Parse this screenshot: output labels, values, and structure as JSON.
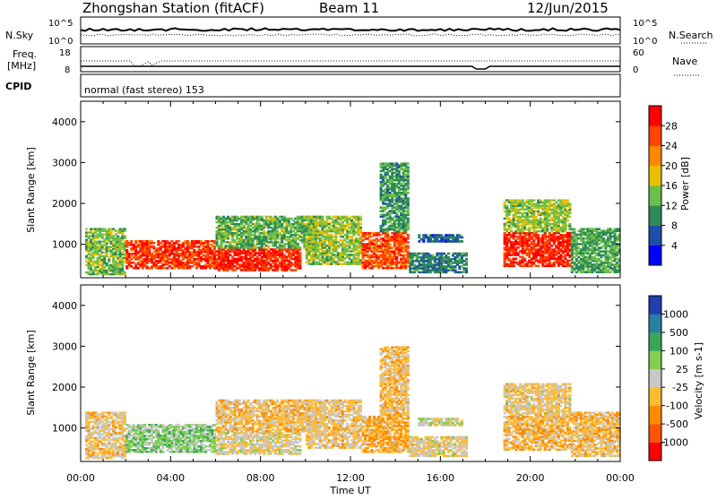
{
  "header": {
    "station": "Zhongshan Station (fitACF)",
    "beam": "Beam 11",
    "date": "12/Jun/2015"
  },
  "strip_noise": {
    "left_label": "N.Sky",
    "right_label": "N.Search",
    "left_ticks": [
      "10^5",
      "10^0"
    ],
    "right_ticks": [
      "10^5",
      "10^0"
    ]
  },
  "strip_freq": {
    "left_label_1": "Freq.",
    "left_label_2": "[MHz]",
    "right_label": "Nave",
    "left_ticks": [
      "18",
      "8"
    ],
    "right_ticks": [
      "60",
      "0"
    ]
  },
  "strip_cpid": {
    "label": "CPID",
    "text": "normal (fast stereo) 153"
  },
  "colors": {
    "power_scale": [
      "#0000ff",
      "#1e4fa8",
      "#2d8a57",
      "#6cbf4a",
      "#e8c000",
      "#ff8800",
      "#ff4400",
      "#ff0000"
    ],
    "velocity_scale": [
      "#ff0000",
      "#ff5500",
      "#ff8c00",
      "#ffbb33",
      "#c8c8c8",
      "#7fd04f",
      "#3aa55a",
      "#2a7fa0",
      "#2040b0"
    ],
    "ground_scatter": "#bbbbbb"
  },
  "chart_data": [
    {
      "type": "heatmap",
      "name": "power",
      "xlabel": "",
      "ylabel": "Slant Range [km]",
      "x_ticks": [
        "00:00",
        "04:00",
        "08:00",
        "12:00",
        "16:00",
        "20:00",
        "00:00"
      ],
      "y_ticks": [
        "1000",
        "2000",
        "3000",
        "4000"
      ],
      "ylim": [
        180,
        4500
      ],
      "colorbar": {
        "label": "Power [dB]",
        "ticks": [
          "4",
          "8",
          "12",
          "16",
          "20",
          "24",
          "28"
        ],
        "range": [
          0,
          32
        ]
      },
      "regions": [
        {
          "t0": 0.2,
          "t1": 2.0,
          "r0": 250,
          "r1": 1400,
          "level": 14
        },
        {
          "t0": 2.0,
          "t1": 6.0,
          "r0": 400,
          "r1": 1100,
          "level": 27
        },
        {
          "t0": 6.0,
          "t1": 9.8,
          "r0": 350,
          "r1": 900,
          "level": 28
        },
        {
          "t0": 6.0,
          "t1": 10.5,
          "r0": 900,
          "r1": 1700,
          "level": 13
        },
        {
          "t0": 10.0,
          "t1": 12.5,
          "r0": 500,
          "r1": 1700,
          "level": 15
        },
        {
          "t0": 12.5,
          "t1": 14.6,
          "r0": 400,
          "r1": 1300,
          "level": 26
        },
        {
          "t0": 13.3,
          "t1": 14.6,
          "r0": 1300,
          "r1": 3000,
          "level": 11
        },
        {
          "t0": 14.6,
          "t1": 17.2,
          "r0": 300,
          "r1": 800,
          "level": 9
        },
        {
          "t0": 15.0,
          "t1": 17.0,
          "r0": 1050,
          "r1": 1250,
          "level": 7
        },
        {
          "t0": 18.8,
          "t1": 21.8,
          "r0": 450,
          "r1": 1300,
          "level": 28
        },
        {
          "t0": 18.8,
          "t1": 21.8,
          "r0": 1300,
          "r1": 2100,
          "level": 15
        },
        {
          "t0": 21.8,
          "t1": 24.0,
          "r0": 300,
          "r1": 1400,
          "level": 12
        }
      ]
    },
    {
      "type": "heatmap",
      "name": "velocity",
      "xlabel": "Time UT",
      "ylabel": "Slant Range [km]",
      "x_ticks": [
        "00:00",
        "04:00",
        "08:00",
        "12:00",
        "16:00",
        "20:00",
        "00:00"
      ],
      "y_ticks": [
        "1000",
        "2000",
        "3000",
        "4000"
      ],
      "ylim": [
        180,
        4500
      ],
      "colorbar": {
        "label": "Velocity [m s-1]",
        "ticks": [
          "1000",
          "500",
          "100",
          "25",
          "-25",
          "-100",
          "-500",
          "-1000"
        ],
        "range": [
          -1000,
          1000
        ]
      },
      "regions": [
        {
          "t0": 0.2,
          "t1": 2.0,
          "r0": 250,
          "r1": 1400,
          "level": -150
        },
        {
          "t0": 2.0,
          "t1": 6.0,
          "r0": 400,
          "r1": 1100,
          "level": 200
        },
        {
          "t0": 6.0,
          "t1": 9.8,
          "r0": 350,
          "r1": 900,
          "level": -80
        },
        {
          "t0": 6.0,
          "t1": 10.5,
          "r0": 900,
          "r1": 1700,
          "level": -200
        },
        {
          "t0": 10.0,
          "t1": 12.5,
          "r0": 500,
          "r1": 1700,
          "level": -150
        },
        {
          "t0": 12.5,
          "t1": 14.6,
          "r0": 400,
          "r1": 1300,
          "level": -300
        },
        {
          "t0": 13.3,
          "t1": 14.6,
          "r0": 1300,
          "r1": 3000,
          "level": -200
        },
        {
          "t0": 14.6,
          "t1": 17.2,
          "r0": 300,
          "r1": 800,
          "level": -90
        },
        {
          "t0": 15.0,
          "t1": 17.0,
          "r0": 1050,
          "r1": 1250,
          "level": 0
        },
        {
          "t0": 18.8,
          "t1": 21.8,
          "r0": 450,
          "r1": 1300,
          "level": -250
        },
        {
          "t0": 18.8,
          "t1": 21.8,
          "r0": 1300,
          "r1": 2100,
          "level": -120
        },
        {
          "t0": 21.8,
          "t1": 24.0,
          "r0": 300,
          "r1": 1400,
          "level": -200
        }
      ]
    }
  ]
}
